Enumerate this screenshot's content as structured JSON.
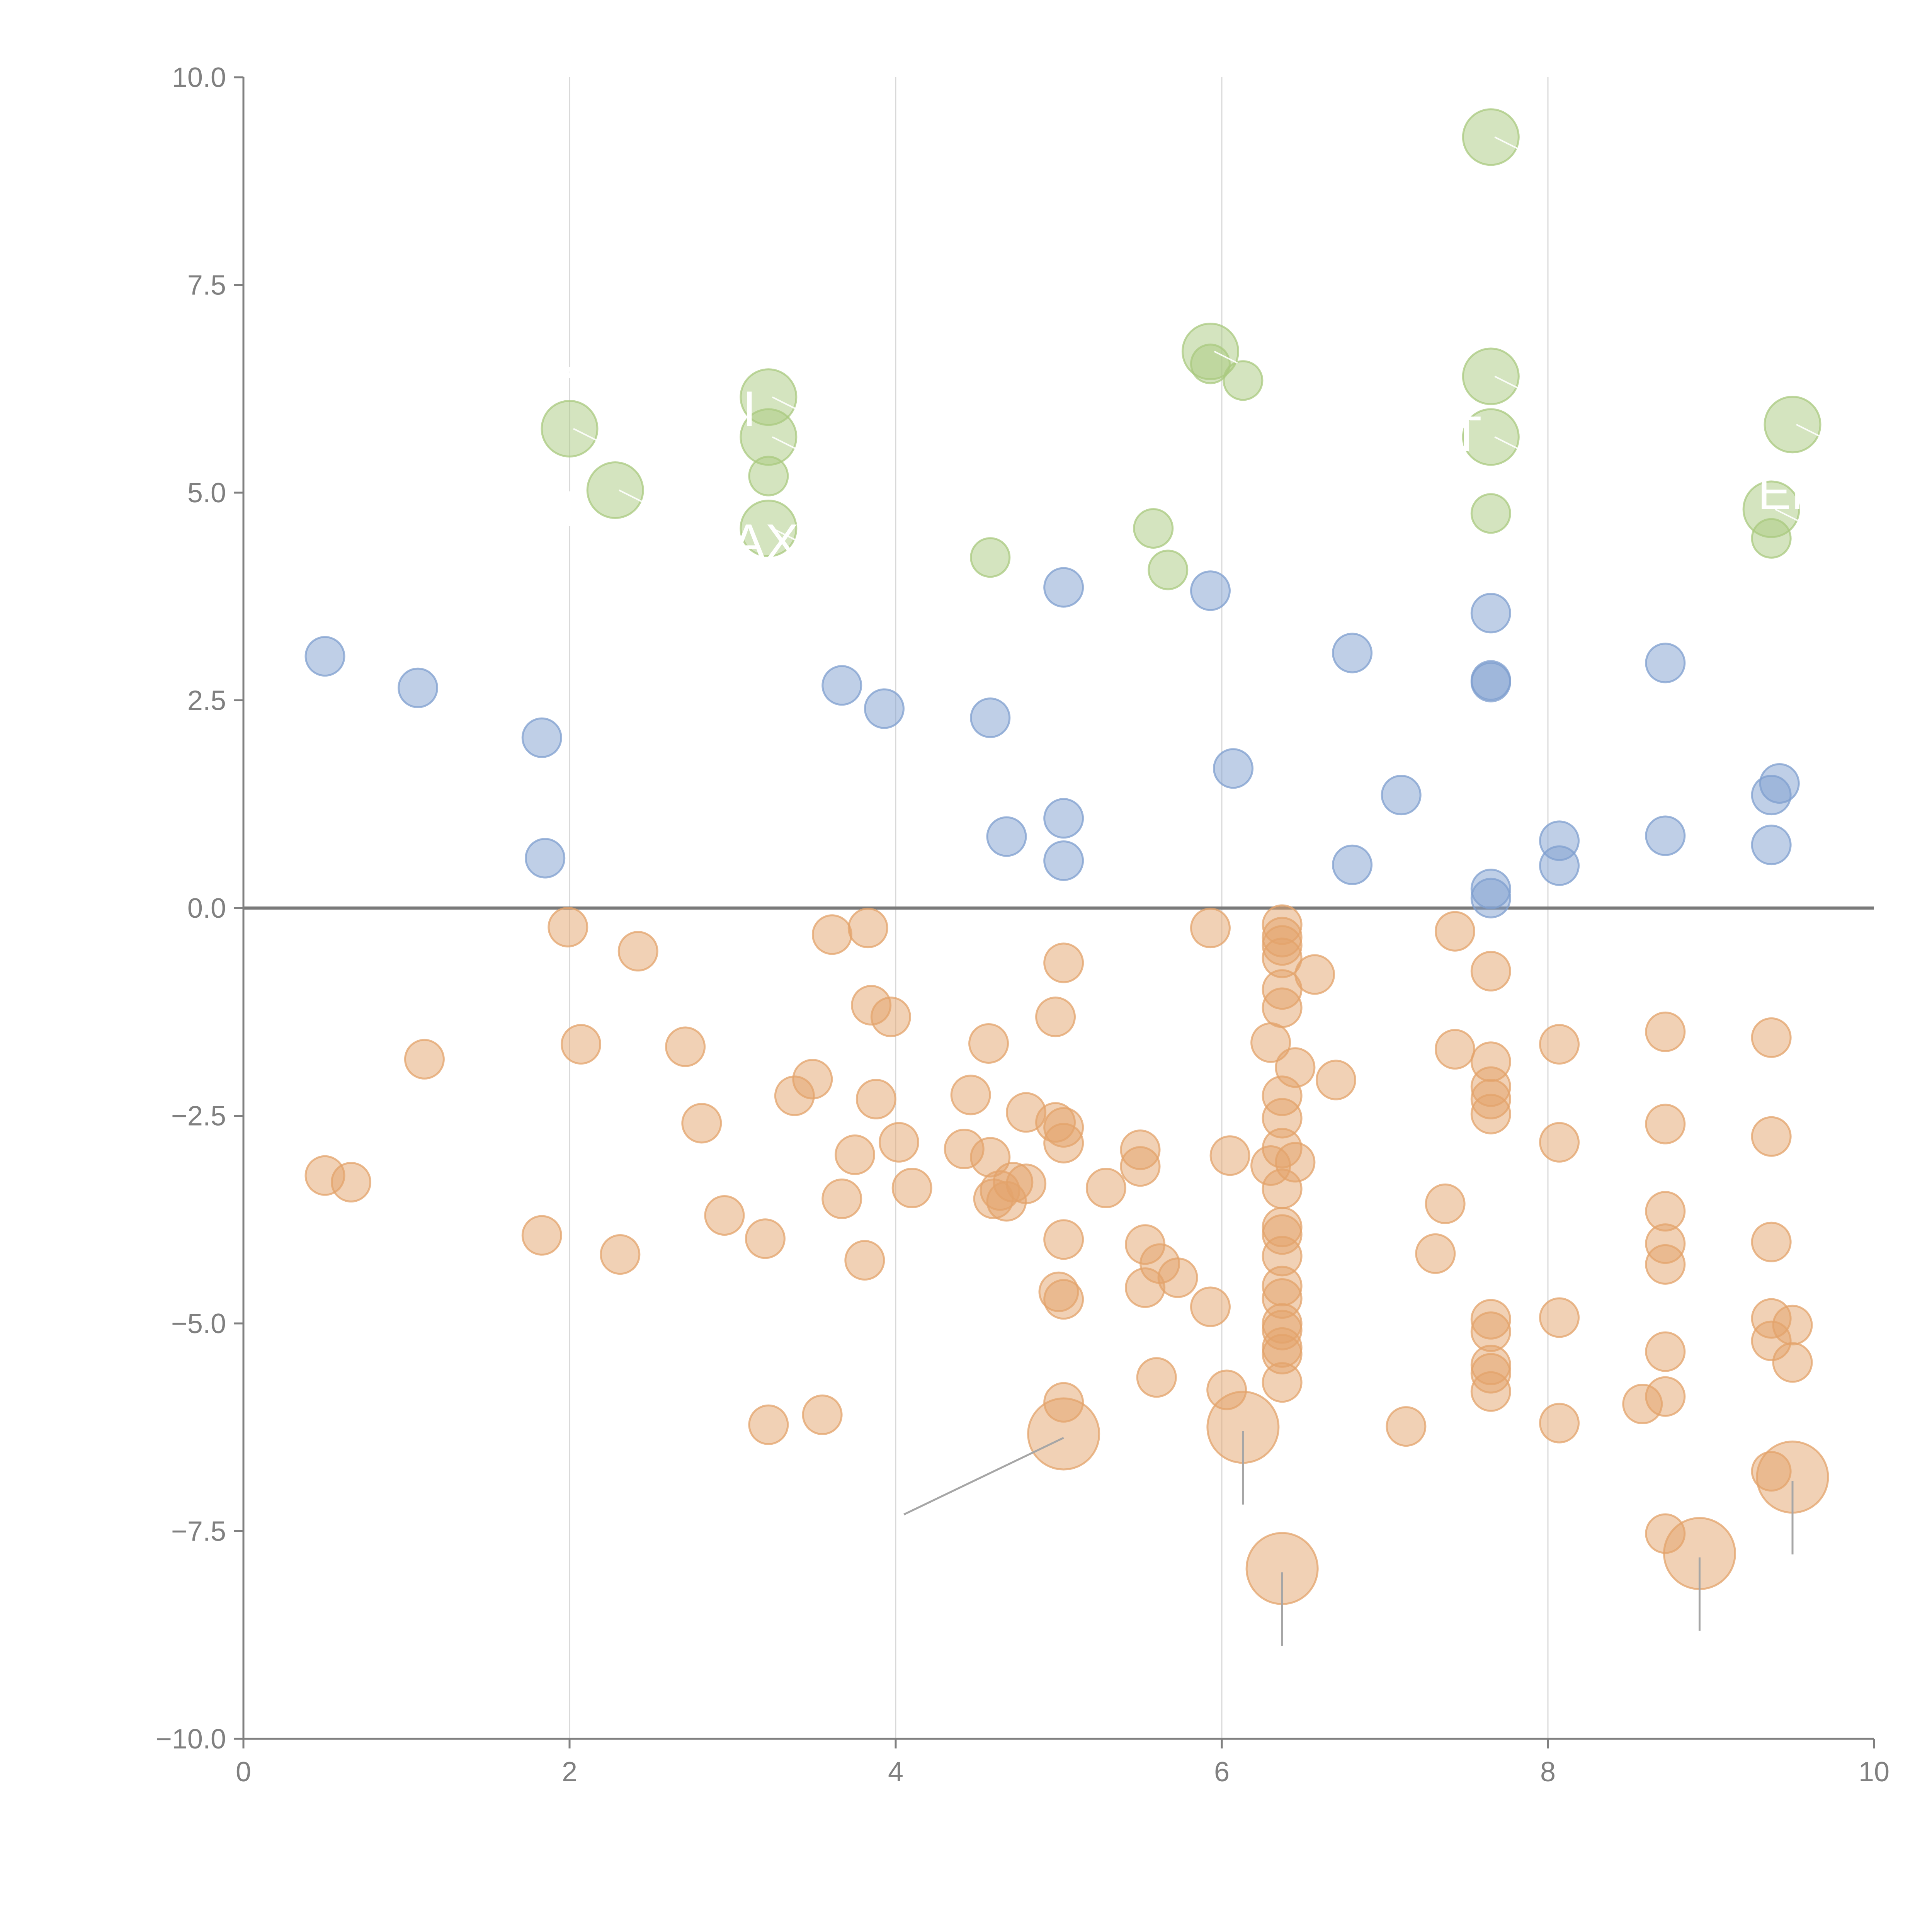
{
  "chart_data": {
    "type": "scatter",
    "title": "",
    "xlabel": "",
    "ylabel": "",
    "xlim": [
      0,
      10
    ],
    "ylim": [
      -10,
      10
    ],
    "xticks": [
      0,
      2,
      4,
      6,
      8,
      10
    ],
    "yticks": [
      -10,
      -7.5,
      -5,
      -2.5,
      0,
      2.5,
      5,
      7.5,
      10
    ],
    "xtick_labels": [
      "0",
      "2",
      "4",
      "6",
      "8",
      "10"
    ],
    "ytick_labels": [
      "−10.0",
      "−7.5",
      "−5.0",
      "−2.5",
      "0.0",
      "2.5",
      "5.0",
      "7.5",
      "10.0"
    ],
    "vertical_grid_at": [
      2,
      4,
      6,
      8
    ],
    "horizontal_reference_line": 0,
    "legend": "none",
    "series": [
      {
        "name": "green",
        "color": "#a9c97f",
        "points": [
          {
            "x": 7.65,
            "y": 9.28,
            "size": "large"
          },
          {
            "x": 5.93,
            "y": 6.7,
            "size": "large"
          },
          {
            "x": 5.93,
            "y": 6.55,
            "size": "small"
          },
          {
            "x": 6.13,
            "y": 6.35,
            "size": "small"
          },
          {
            "x": 7.65,
            "y": 6.4,
            "size": "large"
          },
          {
            "x": 7.65,
            "y": 5.67,
            "size": "large"
          },
          {
            "x": 3.22,
            "y": 6.15,
            "size": "large"
          },
          {
            "x": 3.22,
            "y": 5.67,
            "size": "large"
          },
          {
            "x": 3.22,
            "y": 5.2,
            "size": "small"
          },
          {
            "x": 3.22,
            "y": 4.57,
            "size": "large"
          },
          {
            "x": 2.0,
            "y": 5.77,
            "size": "large"
          },
          {
            "x": 2.28,
            "y": 5.03,
            "size": "large"
          },
          {
            "x": 9.5,
            "y": 5.82,
            "size": "large"
          },
          {
            "x": 9.37,
            "y": 4.8,
            "size": "large"
          },
          {
            "x": 9.37,
            "y": 4.45,
            "size": "small"
          },
          {
            "x": 7.65,
            "y": 4.75,
            "size": "small"
          },
          {
            "x": 5.58,
            "y": 4.57,
            "size": "small"
          },
          {
            "x": 5.67,
            "y": 4.07,
            "size": "small"
          },
          {
            "x": 4.58,
            "y": 4.22,
            "size": "small"
          }
        ]
      },
      {
        "name": "blue",
        "color": "#7f9fcf",
        "points": [
          {
            "x": 0.5,
            "y": 3.03
          },
          {
            "x": 1.07,
            "y": 2.65
          },
          {
            "x": 1.83,
            "y": 2.05
          },
          {
            "x": 1.85,
            "y": 0.6
          },
          {
            "x": 3.67,
            "y": 2.68
          },
          {
            "x": 3.93,
            "y": 2.4
          },
          {
            "x": 4.58,
            "y": 2.29
          },
          {
            "x": 4.68,
            "y": 0.86
          },
          {
            "x": 5.03,
            "y": 3.86
          },
          {
            "x": 5.03,
            "y": 1.08
          },
          {
            "x": 5.03,
            "y": 0.57
          },
          {
            "x": 5.93,
            "y": 3.82
          },
          {
            "x": 6.07,
            "y": 1.68
          },
          {
            "x": 6.8,
            "y": 3.07
          },
          {
            "x": 6.8,
            "y": 0.52
          },
          {
            "x": 7.1,
            "y": 1.36
          },
          {
            "x": 7.65,
            "y": 3.55
          },
          {
            "x": 7.65,
            "y": 2.74
          },
          {
            "x": 7.65,
            "y": 2.72
          },
          {
            "x": 7.65,
            "y": 0.23
          },
          {
            "x": 7.65,
            "y": 0.12
          },
          {
            "x": 8.07,
            "y": 0.81
          },
          {
            "x": 8.07,
            "y": 0.51
          },
          {
            "x": 8.72,
            "y": 2.95
          },
          {
            "x": 8.72,
            "y": 0.87
          },
          {
            "x": 9.37,
            "y": 1.36
          },
          {
            "x": 9.42,
            "y": 1.5
          },
          {
            "x": 9.37,
            "y": 0.76
          }
        ]
      },
      {
        "name": "orange",
        "color": "#e3a36b",
        "points": [
          {
            "x": 0.5,
            "y": -3.22
          },
          {
            "x": 0.66,
            "y": -3.3
          },
          {
            "x": 1.11,
            "y": -1.82
          },
          {
            "x": 1.83,
            "y": -3.94
          },
          {
            "x": 1.99,
            "y": -0.23
          },
          {
            "x": 2.07,
            "y": -1.64
          },
          {
            "x": 2.31,
            "y": -4.17
          },
          {
            "x": 2.42,
            "y": -0.52
          },
          {
            "x": 2.71,
            "y": -1.67
          },
          {
            "x": 2.81,
            "y": -2.59
          },
          {
            "x": 2.95,
            "y": -3.7
          },
          {
            "x": 3.2,
            "y": -3.98
          },
          {
            "x": 3.22,
            "y": -6.22
          },
          {
            "x": 3.38,
            "y": -2.26
          },
          {
            "x": 3.49,
            "y": -2.06
          },
          {
            "x": 3.55,
            "y": -6.1
          },
          {
            "x": 3.61,
            "y": -0.32
          },
          {
            "x": 3.67,
            "y": -3.5
          },
          {
            "x": 3.75,
            "y": -2.97
          },
          {
            "x": 3.81,
            "y": -4.24
          },
          {
            "x": 3.83,
            "y": -0.24
          },
          {
            "x": 3.85,
            "y": -1.17
          },
          {
            "x": 3.88,
            "y": -2.3
          },
          {
            "x": 3.97,
            "y": -1.31
          },
          {
            "x": 4.02,
            "y": -2.82
          },
          {
            "x": 4.1,
            "y": -3.37
          },
          {
            "x": 4.42,
            "y": -2.9
          },
          {
            "x": 4.46,
            "y": -2.25
          },
          {
            "x": 4.57,
            "y": -1.63
          },
          {
            "x": 4.58,
            "y": -3.0
          },
          {
            "x": 4.6,
            "y": -3.5
          },
          {
            "x": 4.64,
            "y": -3.4
          },
          {
            "x": 4.68,
            "y": -3.53
          },
          {
            "x": 4.72,
            "y": -3.3
          },
          {
            "x": 4.8,
            "y": -3.32
          },
          {
            "x": 4.8,
            "y": -2.46
          },
          {
            "x": 4.98,
            "y": -2.58
          },
          {
            "x": 4.98,
            "y": -1.31
          },
          {
            "x": 5.0,
            "y": -4.62
          },
          {
            "x": 5.03,
            "y": -0.66
          },
          {
            "x": 5.03,
            "y": -2.64
          },
          {
            "x": 5.03,
            "y": -2.83
          },
          {
            "x": 5.03,
            "y": -3.99
          },
          {
            "x": 5.03,
            "y": -4.71
          },
          {
            "x": 5.03,
            "y": -5.95
          },
          {
            "x": 5.29,
            "y": -3.37
          },
          {
            "x": 5.5,
            "y": -2.91
          },
          {
            "x": 5.5,
            "y": -3.11
          },
          {
            "x": 5.53,
            "y": -4.57
          },
          {
            "x": 5.53,
            "y": -4.05
          },
          {
            "x": 5.6,
            "y": -5.65
          },
          {
            "x": 5.62,
            "y": -4.28
          },
          {
            "x": 5.73,
            "y": -4.45
          },
          {
            "x": 5.93,
            "y": -0.24
          },
          {
            "x": 5.93,
            "y": -4.8
          },
          {
            "x": 6.03,
            "y": -5.8
          },
          {
            "x": 6.05,
            "y": -2.98
          },
          {
            "x": 6.3,
            "y": -1.62
          },
          {
            "x": 6.3,
            "y": -3.1
          },
          {
            "x": 6.37,
            "y": -0.2
          },
          {
            "x": 6.37,
            "y": -0.35
          },
          {
            "x": 6.37,
            "y": -0.45
          },
          {
            "x": 6.37,
            "y": -0.6
          },
          {
            "x": 6.37,
            "y": -0.98
          },
          {
            "x": 6.37,
            "y": -1.2
          },
          {
            "x": 6.37,
            "y": -2.26
          },
          {
            "x": 6.37,
            "y": -2.53
          },
          {
            "x": 6.37,
            "y": -2.89
          },
          {
            "x": 6.37,
            "y": -3.38
          },
          {
            "x": 6.37,
            "y": -3.84
          },
          {
            "x": 6.37,
            "y": -3.93
          },
          {
            "x": 6.37,
            "y": -4.19
          },
          {
            "x": 6.37,
            "y": -4.55
          },
          {
            "x": 6.37,
            "y": -4.7
          },
          {
            "x": 6.37,
            "y": -5.0
          },
          {
            "x": 6.37,
            "y": -5.08
          },
          {
            "x": 6.37,
            "y": -5.29
          },
          {
            "x": 6.37,
            "y": -5.37
          },
          {
            "x": 6.37,
            "y": -5.71
          },
          {
            "x": 6.45,
            "y": -3.06
          },
          {
            "x": 6.45,
            "y": -1.92
          },
          {
            "x": 6.57,
            "y": -0.8
          },
          {
            "x": 6.7,
            "y": -2.07
          },
          {
            "x": 7.13,
            "y": -6.24
          },
          {
            "x": 7.31,
            "y": -4.16
          },
          {
            "x": 7.37,
            "y": -3.56
          },
          {
            "x": 7.43,
            "y": -0.28
          },
          {
            "x": 7.43,
            "y": -1.7
          },
          {
            "x": 7.65,
            "y": -0.76
          },
          {
            "x": 7.65,
            "y": -1.85
          },
          {
            "x": 7.65,
            "y": -2.15
          },
          {
            "x": 7.65,
            "y": -2.3
          },
          {
            "x": 7.65,
            "y": -2.48
          },
          {
            "x": 7.65,
            "y": -4.95
          },
          {
            "x": 7.65,
            "y": -5.1
          },
          {
            "x": 7.65,
            "y": -5.5
          },
          {
            "x": 7.65,
            "y": -5.6
          },
          {
            "x": 7.65,
            "y": -5.82
          },
          {
            "x": 8.07,
            "y": -1.64
          },
          {
            "x": 8.07,
            "y": -2.82
          },
          {
            "x": 8.07,
            "y": -4.93
          },
          {
            "x": 8.07,
            "y": -6.2
          },
          {
            "x": 8.58,
            "y": -5.97
          },
          {
            "x": 8.72,
            "y": -1.49
          },
          {
            "x": 8.72,
            "y": -2.6
          },
          {
            "x": 8.72,
            "y": -3.65
          },
          {
            "x": 8.72,
            "y": -4.04
          },
          {
            "x": 8.72,
            "y": -4.29
          },
          {
            "x": 8.72,
            "y": -5.34
          },
          {
            "x": 8.72,
            "y": -5.88
          },
          {
            "x": 8.72,
            "y": -7.53
          },
          {
            "x": 9.37,
            "y": -1.56
          },
          {
            "x": 9.37,
            "y": -2.75
          },
          {
            "x": 9.37,
            "y": -4.02
          },
          {
            "x": 9.37,
            "y": -4.94
          },
          {
            "x": 9.37,
            "y": -5.21
          },
          {
            "x": 9.37,
            "y": -6.78
          },
          {
            "x": 9.5,
            "y": -5.02
          },
          {
            "x": 9.5,
            "y": -5.47
          },
          {
            "x": 5.03,
            "y": -6.33,
            "size": "large"
          },
          {
            "x": 6.13,
            "y": -6.25,
            "size": "large"
          },
          {
            "x": 6.37,
            "y": -7.95,
            "size": "large"
          },
          {
            "x": 8.93,
            "y": -7.77,
            "size": "large"
          },
          {
            "x": 9.5,
            "y": -6.85,
            "size": "large"
          }
        ]
      }
    ],
    "annotations": [
      {
        "text": "T",
        "x": 2.0,
        "y": 4.6,
        "color": "#ffffff"
      },
      {
        "text": "’",
        "x": 2.0,
        "y": 6.1,
        "color": "#ffffff"
      },
      {
        "text": "EI",
        "x": 3.0,
        "y": 5.8,
        "color": "#ffffff"
      },
      {
        "text": "AX",
        "x": 3.2,
        "y": 4.2,
        "color": "#ffffff"
      },
      {
        "text": "",
        "x": 5.9,
        "y": 6.9,
        "color": "#ffffff"
      },
      {
        "text": "T",
        "x": 7.5,
        "y": 5.5,
        "color": "#ffffff"
      },
      {
        "text": "EN",
        "x": 9.5,
        "y": 4.8,
        "color": "#ffffff"
      }
    ]
  }
}
